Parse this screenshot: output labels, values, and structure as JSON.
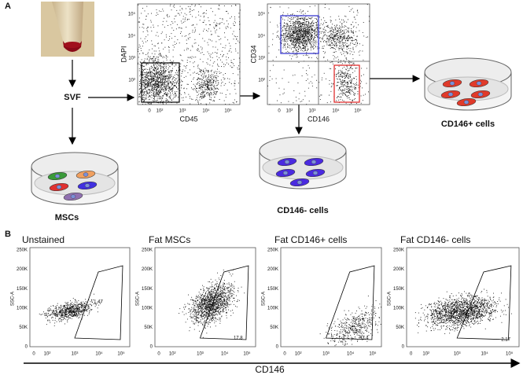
{
  "panel_a": {
    "label": "A",
    "svf": "SVF",
    "mscs": "MSCs",
    "cd146_pos": "CD146+ cells",
    "cd146_neg": "CD146- cells",
    "plot1": {
      "x_label": "CD45",
      "y_label": "DAPI",
      "x_ticks": [
        "0",
        "10²",
        "10³",
        "10⁴",
        "10⁵"
      ],
      "y_ticks": [
        "10⁵",
        "10⁴",
        "10³",
        "10²"
      ]
    },
    "plot2": {
      "x_label": "CD146",
      "y_label": "CD34",
      "x_ticks": [
        "0",
        "10²",
        "10³",
        "10⁴",
        "10⁵"
      ],
      "y_ticks": [
        "10⁵",
        "10⁴",
        "10³",
        "10²"
      ]
    }
  },
  "panel_b": {
    "label": "B",
    "x_axis_label": "CD146",
    "y_label": "SSC-A",
    "y_ticks": [
      "250K",
      "200K",
      "150K",
      "100K",
      "50K",
      "0"
    ],
    "x_ticks": [
      "0",
      "10²",
      "10³",
      "10⁴",
      "10⁵"
    ],
    "plots": [
      {
        "title": "Unstained",
        "gate_value": 1.47
      },
      {
        "title": "Fat MSCs",
        "gate_value": 17.8
      },
      {
        "title": "Fat CD146+ cells",
        "gate_value": 93.4
      },
      {
        "title": "Fat CD146- cells",
        "gate_value": 2.17
      }
    ]
  }
}
